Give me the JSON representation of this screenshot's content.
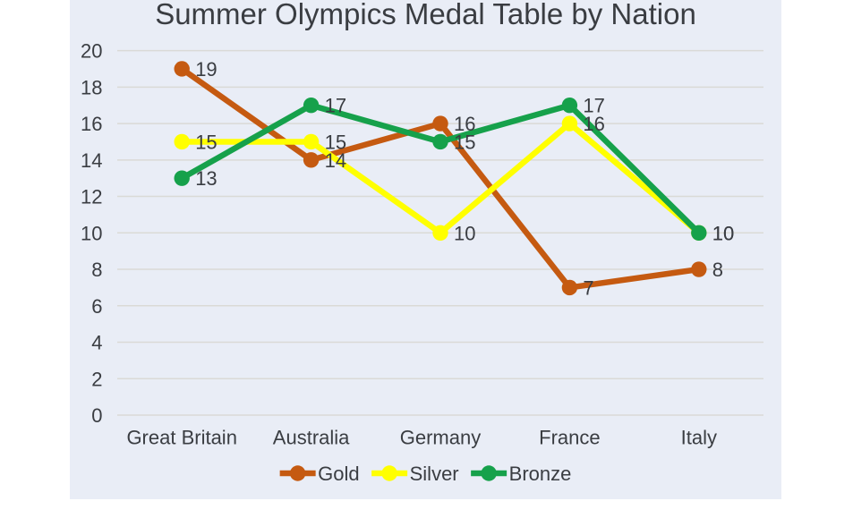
{
  "chart_data": {
    "type": "line",
    "title": "Summer Olympics Medal Table by Nation",
    "categories": [
      "Great Britain",
      "Australia",
      "Germany",
      "France",
      "Italy"
    ],
    "series": [
      {
        "name": "Gold",
        "color": "#c55a11",
        "values": [
          19,
          14,
          16,
          7,
          8
        ]
      },
      {
        "name": "Silver",
        "color": "#ffff00",
        "values": [
          15,
          15,
          10,
          16,
          10
        ]
      },
      {
        "name": "Bronze",
        "color": "#16a14b",
        "values": [
          13,
          17,
          15,
          17,
          10
        ]
      }
    ],
    "xlabel": "",
    "ylabel": "",
    "ylim": [
      0,
      20
    ],
    "y_tick_step": 2,
    "y_ticks": [
      0,
      2,
      4,
      6,
      8,
      10,
      12,
      14,
      16,
      18,
      20
    ],
    "grid": "horizontal",
    "legend_position": "bottom-center",
    "data_labels": "right-of-marker",
    "colors": {
      "plot_background": "#e9edf6",
      "page_background": "#ffffff",
      "gridline": "#dadad6",
      "title_text": "#3a3d42",
      "axis_text": "#3a3d42",
      "label_text": "#3a3d42"
    }
  }
}
